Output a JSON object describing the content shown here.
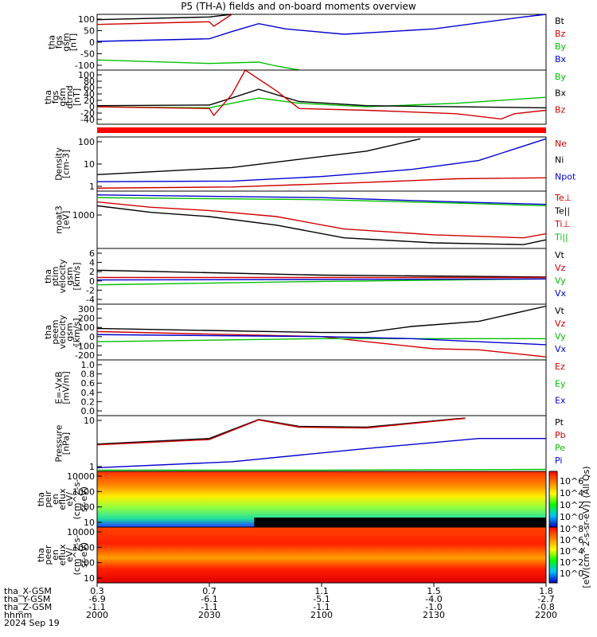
{
  "title": "P5 (TH-A) fields and on-board moments overview",
  "chart_data": [
    {
      "type": "line",
      "ylabel": [
        "tha",
        "fgs",
        "gsm",
        "[nT]"
      ],
      "yticks": [
        "100",
        "50",
        "0",
        "-50",
        "-100"
      ],
      "ylim": [
        -100,
        110
      ],
      "legend": [
        {
          "name": "Bt",
          "color": "#000000"
        },
        {
          "name": "Bz",
          "color": "#d00000"
        },
        {
          "name": "By",
          "color": "#00c000"
        },
        {
          "name": "Bx",
          "color": "#0000d0"
        }
      ],
      "series": [
        {
          "name": "Bt",
          "color": "#000000",
          "points": [
            [
              0,
              90
            ],
            [
              0.25,
              100
            ],
            [
              0.3,
              110
            ]
          ]
        },
        {
          "name": "Bz",
          "color": "#d00000",
          "points": [
            [
              0,
              72
            ],
            [
              0.25,
              82
            ],
            [
              0.26,
              65
            ],
            [
              0.3,
              110
            ]
          ]
        },
        {
          "name": "By",
          "color": "#00c000",
          "points": [
            [
              0,
              -62
            ],
            [
              0.25,
              -75
            ],
            [
              0.36,
              -70
            ],
            [
              0.4,
              -85
            ],
            [
              0.45,
              -100
            ]
          ]
        },
        {
          "name": "Bx",
          "color": "#0000d0",
          "points": [
            [
              0,
              8
            ],
            [
              0.25,
              18
            ],
            [
              0.3,
              45
            ],
            [
              0.36,
              75
            ],
            [
              0.42,
              55
            ],
            [
              0.55,
              35
            ],
            [
              0.75,
              55
            ],
            [
              0.95,
              100
            ],
            [
              1,
              110
            ]
          ]
        }
      ]
    },
    {
      "type": "line",
      "ylabel": [
        "tha",
        "fgs",
        "gsm",
        "dtrnd",
        "[nT]"
      ],
      "yticks": [
        "100",
        "80",
        "60",
        "40",
        "20",
        "0",
        "-20",
        "-40"
      ],
      "ylim": [
        -55,
        100
      ],
      "legend": [
        {
          "name": "By",
          "color": "#00c000"
        },
        {
          "name": "Bx",
          "color": "#000000"
        },
        {
          "name": "Bz",
          "color": "#d00000"
        }
      ],
      "series": [
        {
          "name": "By",
          "color": "#00c000",
          "points": [
            [
              0,
              -5
            ],
            [
              0.25,
              -8
            ],
            [
              0.3,
              5
            ],
            [
              0.36,
              20
            ],
            [
              0.45,
              5
            ],
            [
              0.6,
              -5
            ],
            [
              0.8,
              5
            ],
            [
              1,
              22
            ]
          ]
        },
        {
          "name": "Bx",
          "color": "#000000",
          "points": [
            [
              0,
              -2
            ],
            [
              0.25,
              0
            ],
            [
              0.3,
              20
            ],
            [
              0.36,
              45
            ],
            [
              0.45,
              10
            ],
            [
              0.6,
              -2
            ],
            [
              0.8,
              -5
            ],
            [
              1,
              -8
            ]
          ]
        },
        {
          "name": "Bz",
          "color": "#d00000",
          "points": [
            [
              0,
              -5
            ],
            [
              0.25,
              -10
            ],
            [
              0.26,
              -30
            ],
            [
              0.3,
              30
            ],
            [
              0.33,
              100
            ],
            [
              0.4,
              40
            ],
            [
              0.45,
              -10
            ],
            [
              0.6,
              -15
            ],
            [
              0.8,
              -25
            ],
            [
              0.9,
              -40
            ],
            [
              0.93,
              -25
            ],
            [
              1,
              -15
            ]
          ]
        }
      ]
    },
    {
      "type": "line",
      "ylabel": [
        "Density",
        "[cm-3]"
      ],
      "yticks": [
        "100",
        "10",
        "1"
      ],
      "ylim": [
        0.6,
        120
      ],
      "log": true,
      "legend": [
        {
          "name": "Ne",
          "color": "#d00000"
        },
        {
          "name": "Ni",
          "color": "#000000"
        },
        {
          "name": "Npot",
          "color": "#0000d0"
        }
      ],
      "series": [
        {
          "name": "Ni",
          "color": "#000000",
          "points": [
            [
              0,
              3
            ],
            [
              0.3,
              6
            ],
            [
              0.6,
              30
            ],
            [
              0.72,
              100
            ]
          ]
        },
        {
          "name": "Npot",
          "color": "#0000d0",
          "points": [
            [
              0,
              1.5
            ],
            [
              0.3,
              1.6
            ],
            [
              0.5,
              2.5
            ],
            [
              0.7,
              5
            ],
            [
              0.85,
              12
            ],
            [
              1,
              100
            ]
          ]
        },
        {
          "name": "Ne",
          "color": "#d00000",
          "points": [
            [
              0,
              0.8
            ],
            [
              0.3,
              0.9
            ],
            [
              0.6,
              1.4
            ],
            [
              0.8,
              2
            ],
            [
              1,
              2.2
            ]
          ]
        }
      ]
    },
    {
      "type": "line",
      "ylabel": [
        "moat3",
        "[eV]"
      ],
      "yticks": [
        "1000"
      ],
      "ylim": [
        200,
        3000
      ],
      "log": true,
      "legend": [
        {
          "name": "Te⊥",
          "color": "#d00000"
        },
        {
          "name": "Te||",
          "color": "#000000"
        },
        {
          "name": "Ti⊥",
          "color": "#d00000"
        },
        {
          "name": "Ti||",
          "color": "#00c000"
        }
      ],
      "series": [
        {
          "name": "Ti||",
          "color": "#00c000",
          "points": [
            [
              0,
              2200
            ],
            [
              0.5,
              2000
            ],
            [
              0.8,
              1700
            ],
            [
              1,
              1500
            ]
          ]
        },
        {
          "name": "Ti⊥",
          "color": "#0000d0",
          "points": [
            [
              0,
              2500
            ],
            [
              0.5,
              2200
            ],
            [
              0.8,
              1800
            ],
            [
              1,
              1600
            ]
          ]
        },
        {
          "name": "Te⊥",
          "color": "#d00000",
          "points": [
            [
              0,
              1800
            ],
            [
              0.12,
              1400
            ],
            [
              0.25,
              1200
            ],
            [
              0.4,
              900
            ],
            [
              0.55,
              500
            ],
            [
              0.75,
              380
            ],
            [
              0.95,
              330
            ],
            [
              1,
              400
            ]
          ]
        },
        {
          "name": "Te||",
          "color": "#000000",
          "points": [
            [
              0,
              1500
            ],
            [
              0.12,
              1100
            ],
            [
              0.25,
              900
            ],
            [
              0.4,
              600
            ],
            [
              0.55,
              330
            ],
            [
              0.75,
              260
            ],
            [
              0.95,
              240
            ],
            [
              1,
              300
            ]
          ]
        }
      ]
    },
    {
      "type": "line",
      "ylabel": [
        "tha",
        "ptim",
        "velocity",
        "gsm",
        "[km/s]"
      ],
      "yticks": [
        "6",
        "4",
        "2",
        "0",
        "-2",
        "-4"
      ],
      "ylim": [
        -5,
        6.5
      ],
      "legend": [
        {
          "name": "Vt",
          "color": "#000000"
        },
        {
          "name": "Vz",
          "color": "#d00000"
        },
        {
          "name": "Vy",
          "color": "#00c000"
        },
        {
          "name": "Vx",
          "color": "#0000d0"
        }
      ],
      "series": [
        {
          "name": "Vt",
          "color": "#000000",
          "points": [
            [
              0,
              2
            ],
            [
              0.5,
              1
            ],
            [
              1,
              0.6
            ]
          ]
        },
        {
          "name": "Vz",
          "color": "#d00000",
          "points": [
            [
              0,
              0.5
            ],
            [
              1,
              0.5
            ]
          ]
        },
        {
          "name": "Vy",
          "color": "#00c000",
          "points": [
            [
              0,
              -1
            ],
            [
              0.5,
              -0.3
            ],
            [
              1,
              0.2
            ]
          ]
        },
        {
          "name": "Vx",
          "color": "#0000d0",
          "points": [
            [
              0,
              0
            ],
            [
              1,
              0.2
            ]
          ]
        }
      ]
    },
    {
      "type": "line",
      "ylabel": [
        "tha",
        "peem",
        "velocity",
        "gsm",
        "[km/s]"
      ],
      "yticks": [
        "300",
        "200",
        "100",
        "0",
        "-100",
        "-200"
      ],
      "ylim": [
        -230,
        320
      ],
      "legend": [
        {
          "name": "Vt",
          "color": "#000000"
        },
        {
          "name": "Vz",
          "color": "#d00000"
        },
        {
          "name": "Vy",
          "color": "#00c000"
        },
        {
          "name": "Vx",
          "color": "#0000d0"
        }
      ],
      "series": [
        {
          "name": "Vt",
          "color": "#000000",
          "points": [
            [
              0,
              80
            ],
            [
              0.5,
              40
            ],
            [
              0.6,
              40
            ],
            [
              0.7,
              100
            ],
            [
              0.85,
              150
            ],
            [
              1,
              300
            ]
          ]
        },
        {
          "name": "Vz",
          "color": "#d00000",
          "points": [
            [
              0,
              50
            ],
            [
              0.5,
              0
            ],
            [
              0.6,
              -50
            ],
            [
              0.75,
              -120
            ],
            [
              0.85,
              -130
            ],
            [
              1,
              -200
            ]
          ]
        },
        {
          "name": "Vy",
          "color": "#00c000",
          "points": [
            [
              0,
              -50
            ],
            [
              0.5,
              -20
            ],
            [
              1,
              -20
            ]
          ]
        },
        {
          "name": "Vx",
          "color": "#0000d0",
          "points": [
            [
              0,
              20
            ],
            [
              0.5,
              0
            ],
            [
              0.7,
              -20
            ],
            [
              1,
              -80
            ]
          ]
        }
      ]
    },
    {
      "type": "line",
      "ylabel": [
        "E=-VxB",
        "[mV/m]"
      ],
      "yticks": [
        "1.0",
        "0.8",
        "0.6",
        "0.4",
        "0.2",
        "0.0"
      ],
      "ylim": [
        0,
        1
      ],
      "legend": [
        {
          "name": "Ez",
          "color": "#d00000"
        },
        {
          "name": "Ey",
          "color": "#00c000"
        },
        {
          "name": "Ex",
          "color": "#0000d0"
        }
      ],
      "series": []
    },
    {
      "type": "line",
      "ylabel": [
        "Pressure",
        "[nPa]"
      ],
      "yticks": [
        "10",
        "1"
      ],
      "ylim": [
        0.25,
        40
      ],
      "log": true,
      "legend": [
        {
          "name": "Pt",
          "color": "#000000"
        },
        {
          "name": "Pb",
          "color": "#d00000"
        },
        {
          "name": "Pe",
          "color": "#00c000"
        },
        {
          "name": "Pi",
          "color": "#0000d0"
        }
      ],
      "series": [
        {
          "name": "Pt",
          "color": "#000000",
          "points": [
            [
              0,
              3
            ],
            [
              0.25,
              5
            ],
            [
              0.36,
              28
            ],
            [
              0.45,
              15
            ],
            [
              0.6,
              14
            ],
            [
              0.8,
              30
            ],
            [
              0.82,
              32
            ]
          ]
        },
        {
          "name": "Pb",
          "color": "#d00000",
          "points": [
            [
              0,
              2.8
            ],
            [
              0.25,
              4.5
            ],
            [
              0.36,
              27
            ],
            [
              0.45,
              14
            ],
            [
              0.6,
              13
            ],
            [
              0.8,
              29
            ],
            [
              0.82,
              31
            ]
          ]
        },
        {
          "name": "Pi",
          "color": "#0000d0",
          "points": [
            [
              0,
              0.35
            ],
            [
              0.3,
              0.6
            ],
            [
              0.6,
              2
            ],
            [
              0.85,
              5
            ],
            [
              1,
              5
            ]
          ]
        },
        {
          "name": "Pe",
          "color": "#00c000",
          "points": [
            [
              0,
              0.28
            ],
            [
              0.5,
              0.28
            ],
            [
              1,
              0.3
            ]
          ]
        }
      ]
    },
    {
      "type": "heatmap",
      "ylabel": [
        "tha",
        "peir",
        "en",
        "eflux",
        "eV/",
        "(cm^2-s-",
        "sr-eV)"
      ],
      "yticks": [
        "10000",
        "1000",
        "100",
        "10"
      ]
    },
    {
      "type": "heatmap",
      "ylabel": [
        "tha",
        "peer",
        "en",
        "eflux",
        "eV/",
        "(cm^2-s-",
        "sr-eV)"
      ],
      "yticks": [
        "10000",
        "1000",
        "100",
        "10"
      ]
    }
  ],
  "colorbar": {
    "label": "[eV/(cm^2-s-sr-eV)] (All Qs)",
    "ticks_upper": [
      "10^6",
      "10^4",
      "10^2",
      "10^0"
    ],
    "ticks_lower": [
      "10^8",
      "10^6",
      "10^4",
      "10^2",
      "10^0"
    ]
  },
  "footer": {
    "row_labels": [
      "tha_X-GSM",
      "tha_Y-GSM",
      "tha_Z-GSM",
      "hhmm",
      "2024 Sep 19"
    ],
    "columns": [
      {
        "x": "0.3",
        "y": "-6.9",
        "z": "-1.1",
        "t": "2000"
      },
      {
        "x": "0.7",
        "y": "-6.1",
        "z": "-1.1",
        "t": "2030"
      },
      {
        "x": "1.1",
        "y": "-5.1",
        "z": "-1.1",
        "t": "2100"
      },
      {
        "x": "1.5",
        "y": "-4.0",
        "z": "-1.0",
        "t": "2130"
      },
      {
        "x": "1.8",
        "y": "-2.7",
        "z": "-0.8",
        "t": "2200"
      }
    ]
  }
}
